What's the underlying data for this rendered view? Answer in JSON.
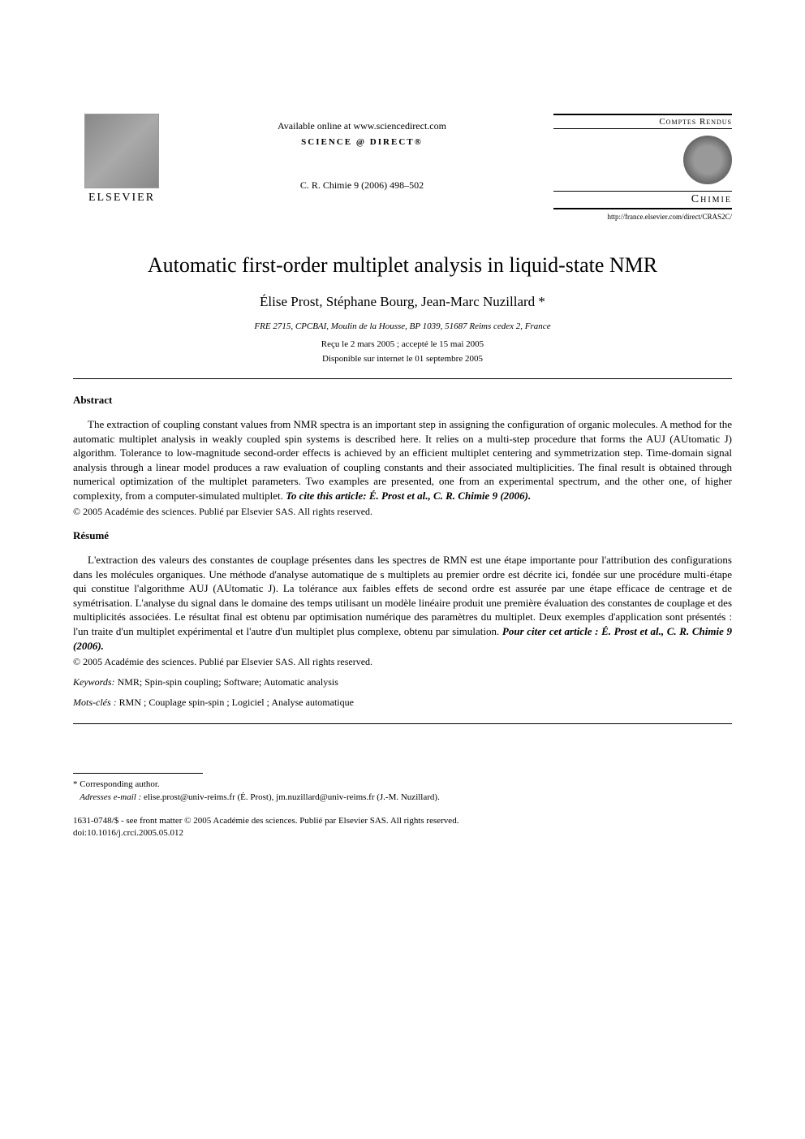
{
  "header": {
    "available_online": "Available online at www.sciencedirect.com",
    "sciencedirect": "SCIENCE @ DIRECT®",
    "journal_ref": "C. R. Chimie 9 (2006) 498–502",
    "elsevier_label": "ELSEVIER",
    "comptes_rendus": "Comptes Rendus",
    "chimie": "Chimie",
    "url": "http://france.elsevier.com/direct/CRAS2C/"
  },
  "title": "Automatic first-order multiplet analysis in liquid-state NMR",
  "authors": "Élise Prost, Stéphane Bourg, Jean-Marc Nuzillard *",
  "affiliation": "FRE 2715, CPCBAI, Moulin de la Housse, BP 1039, 51687 Reims cedex 2, France",
  "received": "Reçu le 2 mars 2005 ; accepté le 15 mai 2005",
  "online": "Disponible sur internet le 01 septembre 2005",
  "abstract": {
    "heading": "Abstract",
    "text": "The extraction of coupling constant values from NMR spectra is an important step in assigning the configuration of organic molecules. A method for the automatic multiplet analysis in weakly coupled spin systems is described here. It relies on a multi-step procedure that forms the AUJ (AUtomatic J) algorithm. Tolerance to low-magnitude second-order effects is achieved by an efficient multiplet centering and symmetrization step. Time-domain signal analysis through a linear model produces a raw evaluation of coupling constants and their associated multiplicities. The final result is obtained through numerical optimization of the multiplet parameters. Two examples are presented, one from an experimental spectrum, and the other one, of higher complexity, from a computer-simulated multiplet.",
    "cite": "To cite this article: É. Prost et al., C. R. Chimie 9 (2006).",
    "copyright": "© 2005 Académie des sciences. Publié par Elsevier SAS. All rights reserved."
  },
  "resume": {
    "heading": "Résumé",
    "text": "L'extraction des valeurs des constantes de couplage présentes dans les spectres de RMN est une étape importante pour l'attribution des configurations dans les molécules organiques. Une méthode d'analyse automatique de s multiplets au premier ordre est décrite ici, fondée sur une procédure multi-étape qui constitue l'algorithme AUJ (AUtomatic J). La tolérance aux faibles effets de second ordre est assurée par une étape efficace de centrage et de symétrisation. L'analyse du signal dans le domaine des temps utilisant un modèle linéaire produit une première évaluation des constantes de couplage et des multiplicités associées. Le résultat final est obtenu par optimisation numérique des paramètres du multiplet. Deux exemples d'application sont présentés : l'un traite d'un multiplet expérimental et l'autre d'un multiplet plus complexe, obtenu par simulation.",
    "cite": "Pour citer cet article : É. Prost et al., C. R. Chimie 9 (2006).",
    "copyright": "© 2005 Académie des sciences. Publié par Elsevier SAS. All rights reserved."
  },
  "keywords": {
    "label": "Keywords:",
    "text": " NMR; Spin-spin coupling; Software; Automatic analysis"
  },
  "motscles": {
    "label": "Mots-clés :",
    "text": " RMN ; Couplage spin-spin ; Logiciel ; Analyse automatique"
  },
  "footnote": {
    "corr": "* Corresponding author.",
    "email_label": "Adresses e-mail :",
    "email_text": " elise.prost@univ-reims.fr (É. Prost), jm.nuzillard@univ-reims.fr (J.-M. Nuzillard)."
  },
  "doi": {
    "front_matter": "1631-0748/$ - see front matter © 2005 Académie des sciences. Publié par Elsevier SAS. All rights reserved.",
    "doi": "doi:10.1016/j.crci.2005.05.012"
  },
  "colors": {
    "text": "#000000",
    "bg": "#ffffff"
  },
  "fonts": {
    "title_size": 26,
    "body_size": 13,
    "small_size": 11
  }
}
